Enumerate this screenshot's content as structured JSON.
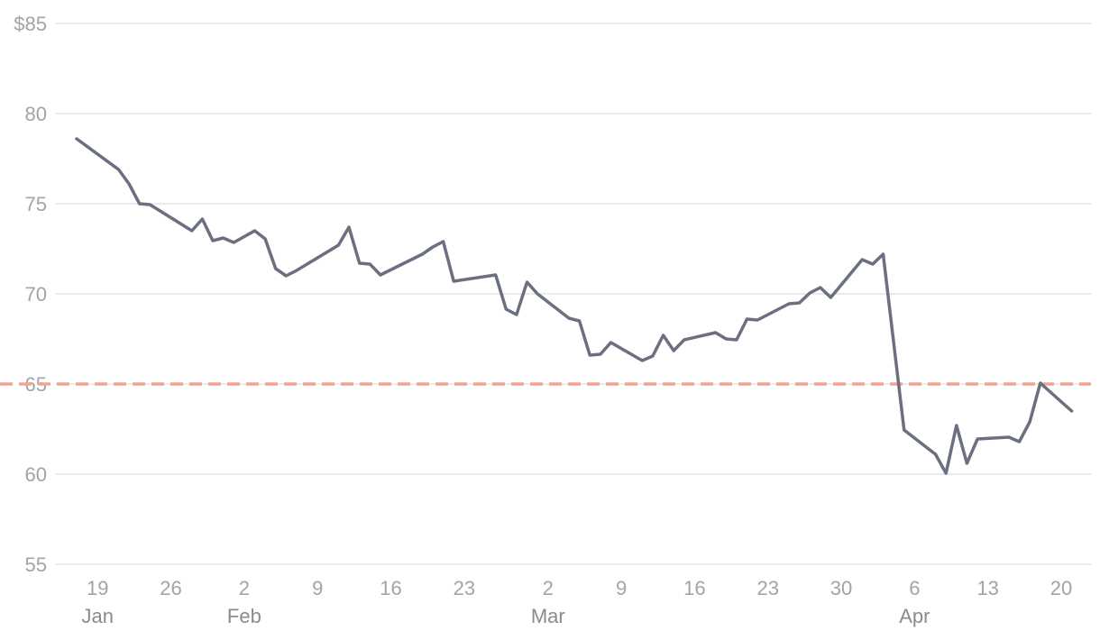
{
  "chart_data": {
    "type": "line",
    "title": "",
    "xlabel": "",
    "ylabel": "",
    "ylim": [
      55,
      85
    ],
    "grid": true,
    "legend": "none",
    "y_ticks": [
      {
        "value": 85,
        "label": "$85"
      },
      {
        "value": 80,
        "label": "80"
      },
      {
        "value": 75,
        "label": "75"
      },
      {
        "value": 70,
        "label": "70"
      },
      {
        "value": 65,
        "label": "65"
      },
      {
        "value": 60,
        "label": "60"
      },
      {
        "value": 55,
        "label": "55"
      }
    ],
    "x_ticks": [
      {
        "date": "2024-01-19",
        "label": "19",
        "month": "Jan"
      },
      {
        "date": "2024-01-26",
        "label": "26",
        "month": ""
      },
      {
        "date": "2024-02-02",
        "label": "2",
        "month": "Feb"
      },
      {
        "date": "2024-02-09",
        "label": "9",
        "month": ""
      },
      {
        "date": "2024-02-16",
        "label": "16",
        "month": ""
      },
      {
        "date": "2024-02-23",
        "label": "23",
        "month": ""
      },
      {
        "date": "2024-03-02",
        "label": "2",
        "month": "Mar"
      },
      {
        "date": "2024-03-09",
        "label": "9",
        "month": ""
      },
      {
        "date": "2024-03-16",
        "label": "16",
        "month": ""
      },
      {
        "date": "2024-03-23",
        "label": "23",
        "month": ""
      },
      {
        "date": "2024-03-30",
        "label": "30",
        "month": ""
      },
      {
        "date": "2024-04-06",
        "label": "6",
        "month": "Apr"
      },
      {
        "date": "2024-04-13",
        "label": "13",
        "month": ""
      },
      {
        "date": "2024-04-20",
        "label": "20",
        "month": ""
      }
    ],
    "x_range": [
      "2024-01-16",
      "2024-04-21"
    ],
    "reference_line": {
      "value": 65,
      "color": "#f4a393",
      "style": "dashed"
    },
    "series": [
      {
        "color": "#6b7080",
        "points": [
          [
            "2024-01-17",
            78.6
          ],
          [
            "2024-01-21",
            76.9
          ],
          [
            "2024-01-22",
            76.1
          ],
          [
            "2024-01-23",
            75.0
          ],
          [
            "2024-01-24",
            74.95
          ],
          [
            "2024-01-28",
            73.5
          ],
          [
            "2024-01-29",
            74.15
          ],
          [
            "2024-01-30",
            72.95
          ],
          [
            "2024-01-31",
            73.1
          ],
          [
            "2024-02-01",
            72.85
          ],
          [
            "2024-02-03",
            73.5
          ],
          [
            "2024-02-04",
            73.05
          ],
          [
            "2024-02-05",
            71.4
          ],
          [
            "2024-02-06",
            71.0
          ],
          [
            "2024-02-07",
            71.3
          ],
          [
            "2024-02-11",
            72.7
          ],
          [
            "2024-02-12",
            73.7
          ],
          [
            "2024-02-13",
            71.7
          ],
          [
            "2024-02-14",
            71.65
          ],
          [
            "2024-02-15",
            71.05
          ],
          [
            "2024-02-19",
            72.2
          ],
          [
            "2024-02-20",
            72.6
          ],
          [
            "2024-02-21",
            72.9
          ],
          [
            "2024-02-22",
            70.7
          ],
          [
            "2024-02-26",
            71.05
          ],
          [
            "2024-02-27",
            69.15
          ],
          [
            "2024-02-28",
            68.85
          ],
          [
            "2024-02-29",
            70.65
          ],
          [
            "2024-03-01",
            70.0
          ],
          [
            "2024-03-04",
            68.65
          ],
          [
            "2024-03-05",
            68.5
          ],
          [
            "2024-03-06",
            66.6
          ],
          [
            "2024-03-07",
            66.65
          ],
          [
            "2024-03-08",
            67.3
          ],
          [
            "2024-03-11",
            66.3
          ],
          [
            "2024-03-12",
            66.55
          ],
          [
            "2024-03-13",
            67.7
          ],
          [
            "2024-03-14",
            66.85
          ],
          [
            "2024-03-15",
            67.45
          ],
          [
            "2024-03-18",
            67.85
          ],
          [
            "2024-03-19",
            67.5
          ],
          [
            "2024-03-20",
            67.45
          ],
          [
            "2024-03-21",
            68.6
          ],
          [
            "2024-03-22",
            68.55
          ],
          [
            "2024-03-25",
            69.45
          ],
          [
            "2024-03-26",
            69.5
          ],
          [
            "2024-03-27",
            70.05
          ],
          [
            "2024-03-28",
            70.35
          ],
          [
            "2024-03-29",
            69.8
          ],
          [
            "2024-04-01",
            71.9
          ],
          [
            "2024-04-02",
            71.65
          ],
          [
            "2024-04-03",
            72.2
          ],
          [
            "2024-04-05",
            62.45
          ],
          [
            "2024-04-08",
            61.1
          ],
          [
            "2024-04-09",
            60.05
          ],
          [
            "2024-04-10",
            62.7
          ],
          [
            "2024-04-11",
            60.6
          ],
          [
            "2024-04-12",
            61.95
          ],
          [
            "2024-04-15",
            62.05
          ],
          [
            "2024-04-16",
            61.8
          ],
          [
            "2024-04-17",
            62.9
          ],
          [
            "2024-04-18",
            65.05
          ],
          [
            "2024-04-21",
            63.5
          ]
        ]
      }
    ]
  }
}
